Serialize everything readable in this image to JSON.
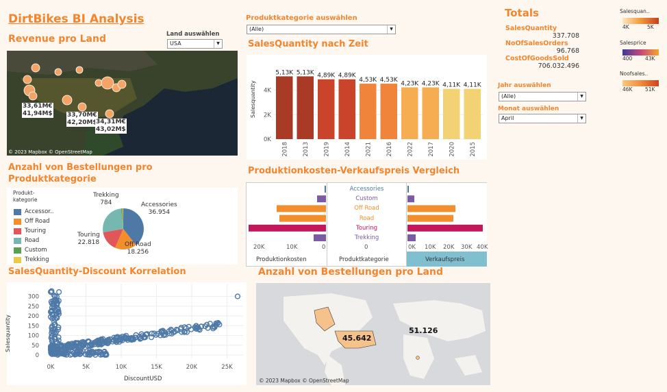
{
  "header": {
    "title": "DirtBikes BI Analysis"
  },
  "revenue_map": {
    "title": "Revenue pro Land",
    "filter_label": "Land auswählen",
    "filter_value": "USA",
    "labels": [
      {
        "line1": "33,61M€",
        "line2": "41,94M$"
      },
      {
        "line1": "33,70M€",
        "line2": "42,20M$"
      },
      {
        "line1": "34,31M€",
        "line2": "43,02M$"
      }
    ],
    "attribution": "© 2023 Mapbox © OpenStreetMap"
  },
  "category_filter": {
    "label": "Produktkategorie auswählen",
    "value": "(Alle)"
  },
  "qty_time": {
    "title": "SalesQuantity nach Zeit",
    "ylabel": "Salesquantity"
  },
  "totals": {
    "title": "Totals",
    "items": [
      {
        "label": "SalesQuantity",
        "value": "337.708"
      },
      {
        "label": "NoOfSalesOrders",
        "value": "96.768"
      },
      {
        "label": "CostOfGoodsSold",
        "value": "706.032.496"
      }
    ]
  },
  "legends": [
    {
      "title": "Salesquan..",
      "min": "4K",
      "max": "5K",
      "colors": [
        "#fde7c2",
        "#f39a3b",
        "#c4401c"
      ]
    },
    {
      "title": "Salesprice",
      "min": "400",
      "max": "43K",
      "colors": [
        "#3a3a9e",
        "#c5487c",
        "#f8a32b"
      ]
    },
    {
      "title": "Noofsales..",
      "min": "46K",
      "max": "51K",
      "colors": [
        "#fbc781",
        "#f08c3c",
        "#d1421b"
      ]
    }
  ],
  "year_filter": {
    "label": "Jahr auswählen",
    "value": "(Alle)"
  },
  "month_filter": {
    "label": "Monat auswählen",
    "value": "April"
  },
  "orders_pie": {
    "title_line1": "Anzahl von Bestellungen pro",
    "title_line2": "Produktkategorie",
    "legend_title_line1": "Produkt-",
    "legend_title_line2": "kategorie",
    "legend": [
      {
        "label": "Accessor..",
        "color": "#4e79a7"
      },
      {
        "label": "Off Road",
        "color": "#f28e2b"
      },
      {
        "label": "Touring",
        "color": "#e15759"
      },
      {
        "label": "Road",
        "color": "#76b7b2"
      },
      {
        "label": "Custom",
        "color": "#59a14f"
      },
      {
        "label": "Trekking",
        "color": "#edc948"
      }
    ],
    "slice_labels": [
      {
        "name": "Trekking",
        "value": "784"
      },
      {
        "name": "Accessories",
        "value": "36.954"
      },
      {
        "name": "Touring",
        "value": "22.818"
      },
      {
        "name": "Off Road",
        "value": "18.256"
      }
    ]
  },
  "compare": {
    "title": "Produktionkosten-Verkaufspreis Vergleich",
    "categories": [
      {
        "name": "Accessories",
        "color": "#4e79a7"
      },
      {
        "name": "Custom",
        "color": "#7b5aa6"
      },
      {
        "name": "Off Road",
        "color": "#f28e2b"
      },
      {
        "name": "Road",
        "color": "#f28e2b"
      },
      {
        "name": "Touring",
        "color": "#c2185b"
      },
      {
        "name": "Trekking",
        "color": "#7b5aa6"
      }
    ],
    "left_ticks": [
      "20K",
      "10K",
      "0"
    ],
    "right_ticks": [
      "0K",
      "10K",
      "20K",
      "30K",
      "40K"
    ],
    "left_label": "Produktionkosten",
    "mid_label": "Produktkategorie",
    "right_label": "Verkaufspreis"
  },
  "scatter": {
    "title": "SalesQuantity-Discount Korrelation",
    "xlabel": "DiscountUSD",
    "ylabel": "Salesquantity",
    "x_ticks": [
      "0K",
      "5K",
      "10K",
      "15K",
      "20K",
      "25K"
    ],
    "y_ticks": [
      "0",
      "50",
      "100",
      "150",
      "200",
      "250",
      "300"
    ]
  },
  "orders_map": {
    "title": "Anzahl von Bestellungen pro Land",
    "labels": [
      "45.642",
      "51.126"
    ],
    "attribution": "© 2023 Mapbox © OpenStreetMap"
  },
  "chart_data": {
    "type": "bar",
    "title": "SalesQuantity nach Zeit",
    "ylabel": "Salesquantity",
    "categories": [
      "2018",
      "2013",
      "2019",
      "2014",
      "2021",
      "2016",
      "2022",
      "2017",
      "2020",
      "2015"
    ],
    "values": [
      5130,
      5130,
      4890,
      4890,
      4530,
      4530,
      4230,
      4230,
      4110,
      4110
    ],
    "labels": [
      "5,13K",
      "5,13K",
      "4,89K",
      "4,89K",
      "4,53K",
      "4,53K",
      "4,23K",
      "4,23K",
      "4,11K",
      "4,11K"
    ],
    "y_ticks": [
      "0K",
      "2K",
      "4K"
    ],
    "ylim": [
      0,
      5600
    ]
  }
}
